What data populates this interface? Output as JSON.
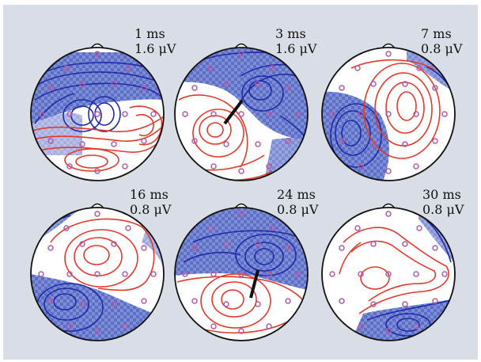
{
  "figure": {
    "colors": {
      "background": "#d9dde6",
      "head_fill": "#ffffff",
      "head_outline": "#111111",
      "negative_contour": "#1e2aa8",
      "negative_fill": "#6f7fcf",
      "positive_contour": "#e23a2a",
      "electrode": "#b05aa8",
      "dipole": "#111111"
    },
    "panels": [
      {
        "time": "1 ms",
        "amplitude": "1.6 μV"
      },
      {
        "time": "3 ms",
        "amplitude": "1.6 μV"
      },
      {
        "time": "7 ms",
        "amplitude": "0.8 μV"
      },
      {
        "time": "16 ms",
        "amplitude": "0.8 μV"
      },
      {
        "time": "24 ms",
        "amplitude": "0.8 μV"
      },
      {
        "time": "30 ms",
        "amplitude": "0.8 μV"
      }
    ]
  }
}
